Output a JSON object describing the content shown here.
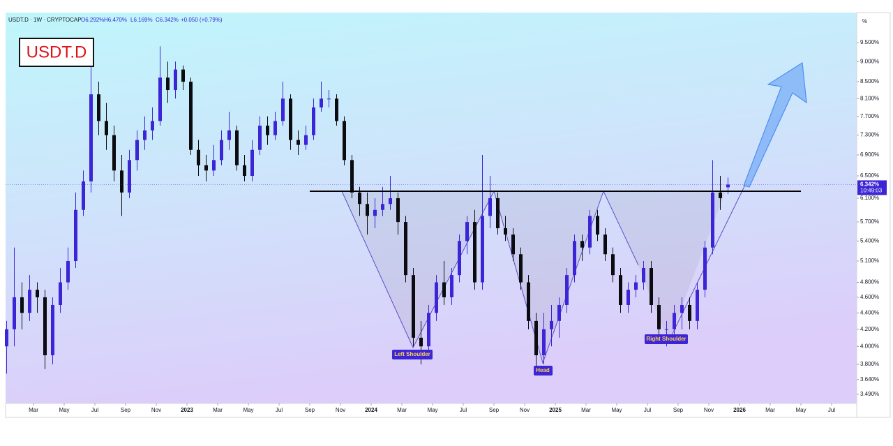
{
  "header": {
    "symbol_line": "USDT.D · 1W · CRYPTOCAP",
    "ohlc_texts": [
      "O6.292%",
      "H6.470%",
      "L6.169%",
      "C6.342%",
      "+0.050 (+0.79%)"
    ],
    "badge": "USDT.D",
    "axis_unit": "%",
    "price_label": "6.342%",
    "countdown": "10:49:03"
  },
  "annotations": [
    "Left Shoulder",
    "Head",
    "Right Shoulder"
  ],
  "chart_data": {
    "type": "candlestick",
    "log_scale": true,
    "up_color": "#3b25d6",
    "down_color": "#0b0b10",
    "ylim": [
      3.4,
      10.35
    ],
    "yticks": [
      {
        "value": 3.49,
        "label": "3.490%"
      },
      {
        "value": 3.64,
        "label": "3.640%"
      },
      {
        "value": 3.8,
        "label": "3.800%"
      },
      {
        "value": 4.0,
        "label": "4.000%"
      },
      {
        "value": 4.2,
        "label": "4.200%"
      },
      {
        "value": 4.4,
        "label": "4.400%"
      },
      {
        "value": 4.6,
        "label": "4.600%"
      },
      {
        "value": 4.8,
        "label": "4.800%"
      },
      {
        "value": 5.1,
        "label": "5.100%"
      },
      {
        "value": 5.4,
        "label": "5.400%"
      },
      {
        "value": 5.7,
        "label": "5.700%"
      },
      {
        "value": 6.1,
        "label": "6.100%"
      },
      {
        "value": 6.5,
        "label": "6.500%"
      },
      {
        "value": 6.9,
        "label": "6.900%"
      },
      {
        "value": 7.3,
        "label": "7.300%"
      },
      {
        "value": 7.7,
        "label": "7.700%"
      },
      {
        "value": 8.1,
        "label": "8.100%"
      },
      {
        "value": 8.5,
        "label": "8.500%"
      },
      {
        "value": 9.0,
        "label": "9.000%"
      },
      {
        "value": 9.5,
        "label": "9.500%"
      }
    ],
    "xlim": [
      "2022-01",
      "2026-08"
    ],
    "xticks": [
      {
        "value": "2022-03",
        "label": "Mar"
      },
      {
        "value": "2022-05",
        "label": "May"
      },
      {
        "value": "2022-07",
        "label": "Jul"
      },
      {
        "value": "2022-09",
        "label": "Sep"
      },
      {
        "value": "2022-11",
        "label": "Nov"
      },
      {
        "value": "2023-01",
        "label": "2023"
      },
      {
        "value": "2023-03",
        "label": "Mar"
      },
      {
        "value": "2023-05",
        "label": "May"
      },
      {
        "value": "2023-07",
        "label": "Jul"
      },
      {
        "value": "2023-09",
        "label": "Sep"
      },
      {
        "value": "2023-11",
        "label": "Nov"
      },
      {
        "value": "2024-01",
        "label": "2024"
      },
      {
        "value": "2024-03",
        "label": "Mar"
      },
      {
        "value": "2024-05",
        "label": "May"
      },
      {
        "value": "2024-07",
        "label": "Jul"
      },
      {
        "value": "2024-09",
        "label": "Sep"
      },
      {
        "value": "2024-11",
        "label": "Nov"
      },
      {
        "value": "2025-01",
        "label": "2025"
      },
      {
        "value": "2025-03",
        "label": "Mar"
      },
      {
        "value": "2025-05",
        "label": "May"
      },
      {
        "value": "2025-07",
        "label": "Jul"
      },
      {
        "value": "2025-09",
        "label": "Sep"
      },
      {
        "value": "2025-11",
        "label": "Nov"
      },
      {
        "value": "2026-01",
        "label": "2026"
      },
      {
        "value": "2026-03",
        "label": "Mar"
      },
      {
        "value": "2026-05",
        "label": "May"
      },
      {
        "value": "2026-07",
        "label": "Jul"
      }
    ],
    "months": [
      {
        "x": "2022-01",
        "candles": [
          [
            4.0,
            4.3,
            3.7,
            4.2
          ],
          [
            4.2,
            5.3,
            4.0,
            4.6
          ]
        ]
      },
      {
        "x": "2022-02",
        "candles": [
          [
            4.6,
            4.8,
            4.2,
            4.4
          ],
          [
            4.4,
            4.9,
            4.3,
            4.7
          ]
        ]
      },
      {
        "x": "2022-03",
        "candles": [
          [
            4.7,
            4.8,
            4.4,
            4.6
          ],
          [
            4.6,
            4.7,
            3.75,
            3.9
          ]
        ]
      },
      {
        "x": "2022-04",
        "candles": [
          [
            3.9,
            4.6,
            3.8,
            4.5
          ],
          [
            4.5,
            5.0,
            4.4,
            4.8
          ]
        ]
      },
      {
        "x": "2022-05",
        "candles": [
          [
            4.8,
            5.3,
            4.7,
            5.1
          ],
          [
            5.1,
            6.2,
            5.0,
            5.9
          ]
        ]
      },
      {
        "x": "2022-06",
        "candles": [
          [
            5.9,
            6.6,
            5.8,
            6.4
          ],
          [
            6.4,
            9.4,
            6.2,
            8.2
          ]
        ]
      },
      {
        "x": "2022-07",
        "candles": [
          [
            8.2,
            8.5,
            7.3,
            7.6
          ],
          [
            7.6,
            8.0,
            7.0,
            7.3
          ]
        ]
      },
      {
        "x": "2022-08",
        "candles": [
          [
            7.3,
            7.5,
            6.4,
            6.6
          ],
          [
            6.6,
            6.9,
            5.8,
            6.2
          ]
        ]
      },
      {
        "x": "2022-09",
        "candles": [
          [
            6.2,
            7.0,
            6.1,
            6.8
          ],
          [
            6.8,
            7.4,
            6.6,
            7.2
          ]
        ]
      },
      {
        "x": "2022-10",
        "candles": [
          [
            7.2,
            7.7,
            7.0,
            7.4
          ],
          [
            7.4,
            7.9,
            7.2,
            7.6
          ]
        ]
      },
      {
        "x": "2022-11",
        "candles": [
          [
            7.6,
            9.4,
            7.5,
            8.6
          ],
          [
            8.6,
            9.0,
            8.0,
            8.3
          ]
        ]
      },
      {
        "x": "2022-12",
        "candles": [
          [
            8.3,
            9.0,
            8.1,
            8.8
          ],
          [
            8.8,
            8.9,
            8.3,
            8.5
          ]
        ]
      },
      {
        "x": "2023-01",
        "candles": [
          [
            8.5,
            8.6,
            6.9,
            7.0
          ],
          [
            7.0,
            7.2,
            6.5,
            6.7
          ]
        ]
      },
      {
        "x": "2023-02",
        "candles": [
          [
            6.7,
            6.9,
            6.4,
            6.6
          ],
          [
            6.6,
            7.1,
            6.5,
            6.8
          ]
        ]
      },
      {
        "x": "2023-03",
        "candles": [
          [
            6.8,
            7.4,
            6.7,
            7.2
          ],
          [
            7.2,
            7.8,
            7.0,
            7.4
          ]
        ]
      },
      {
        "x": "2023-04",
        "candles": [
          [
            7.4,
            7.5,
            6.6,
            6.7
          ],
          [
            6.7,
            6.9,
            6.4,
            6.5
          ]
        ]
      },
      {
        "x": "2023-05",
        "candles": [
          [
            6.5,
            7.2,
            6.4,
            7.0
          ],
          [
            7.0,
            7.7,
            6.9,
            7.5
          ]
        ]
      },
      {
        "x": "2023-06",
        "candles": [
          [
            7.5,
            7.7,
            7.1,
            7.3
          ],
          [
            7.3,
            7.8,
            7.2,
            7.6
          ]
        ]
      },
      {
        "x": "2023-07",
        "candles": [
          [
            7.6,
            8.5,
            7.5,
            8.1
          ],
          [
            8.1,
            8.2,
            7.0,
            7.2
          ]
        ]
      },
      {
        "x": "2023-08",
        "candles": [
          [
            7.2,
            7.4,
            6.9,
            7.1
          ],
          [
            7.1,
            7.5,
            7.0,
            7.3
          ]
        ]
      },
      {
        "x": "2023-09",
        "candles": [
          [
            7.3,
            8.1,
            7.2,
            7.9
          ],
          [
            7.9,
            8.5,
            7.8,
            8.1
          ]
        ]
      },
      {
        "x": "2023-10",
        "candles": [
          [
            8.1,
            8.3,
            7.9,
            8.1
          ],
          [
            8.1,
            8.2,
            7.5,
            7.6
          ]
        ]
      },
      {
        "x": "2023-11",
        "candles": [
          [
            7.6,
            7.7,
            6.7,
            6.8
          ],
          [
            6.8,
            6.9,
            6.1,
            6.2
          ]
        ]
      },
      {
        "x": "2023-12",
        "candles": [
          [
            6.2,
            6.3,
            5.8,
            6.0
          ],
          [
            6.0,
            6.2,
            5.5,
            5.8
          ]
        ]
      },
      {
        "x": "2024-01",
        "candles": [
          [
            5.8,
            6.1,
            5.6,
            5.9
          ],
          [
            5.9,
            6.3,
            5.8,
            6.0
          ]
        ]
      },
      {
        "x": "2024-02",
        "candles": [
          [
            6.0,
            6.5,
            5.9,
            6.1
          ],
          [
            6.1,
            6.2,
            5.5,
            5.7
          ]
        ]
      },
      {
        "x": "2024-03",
        "candles": [
          [
            5.7,
            5.8,
            4.8,
            4.9
          ],
          [
            4.9,
            5.0,
            4.0,
            4.1
          ]
        ]
      },
      {
        "x": "2024-04",
        "candles": [
          [
            4.1,
            4.3,
            3.8,
            4.0
          ],
          [
            4.0,
            4.5,
            3.95,
            4.4
          ]
        ]
      },
      {
        "x": "2024-05",
        "candles": [
          [
            4.4,
            4.9,
            4.3,
            4.8
          ],
          [
            4.8,
            5.1,
            4.5,
            4.6
          ]
        ]
      },
      {
        "x": "2024-06",
        "candles": [
          [
            4.6,
            5.0,
            4.5,
            4.9
          ],
          [
            4.9,
            5.5,
            4.8,
            5.4
          ]
        ]
      },
      {
        "x": "2024-07",
        "candles": [
          [
            5.4,
            5.8,
            5.2,
            5.7
          ],
          [
            5.7,
            5.9,
            4.7,
            4.8
          ]
        ]
      },
      {
        "x": "2024-08",
        "candles": [
          [
            4.8,
            6.9,
            4.7,
            5.8
          ],
          [
            5.8,
            6.5,
            5.6,
            6.1
          ]
        ]
      },
      {
        "x": "2024-09",
        "candles": [
          [
            6.1,
            6.2,
            5.5,
            5.6
          ],
          [
            5.6,
            5.8,
            5.4,
            5.5
          ]
        ]
      },
      {
        "x": "2024-10",
        "candles": [
          [
            5.5,
            5.6,
            5.1,
            5.2
          ],
          [
            5.2,
            5.3,
            4.7,
            4.8
          ]
        ]
      },
      {
        "x": "2024-11",
        "candles": [
          [
            4.8,
            4.9,
            4.2,
            4.3
          ],
          [
            4.3,
            4.4,
            3.75,
            3.9
          ]
        ]
      },
      {
        "x": "2024-12",
        "candles": [
          [
            3.9,
            4.4,
            3.8,
            4.2
          ],
          [
            4.2,
            4.5,
            4.0,
            4.3
          ]
        ]
      },
      {
        "x": "2025-01",
        "candles": [
          [
            4.3,
            4.6,
            4.1,
            4.5
          ],
          [
            4.5,
            5.0,
            4.4,
            4.9
          ]
        ]
      },
      {
        "x": "2025-02",
        "candles": [
          [
            4.9,
            5.5,
            4.8,
            5.4
          ],
          [
            5.4,
            5.5,
            5.1,
            5.3
          ]
        ]
      },
      {
        "x": "2025-03",
        "candles": [
          [
            5.3,
            5.9,
            5.2,
            5.8
          ],
          [
            5.8,
            5.9,
            5.4,
            5.5
          ]
        ]
      },
      {
        "x": "2025-04",
        "candles": [
          [
            5.5,
            5.6,
            5.1,
            5.2
          ],
          [
            5.2,
            5.3,
            4.8,
            4.9
          ]
        ]
      },
      {
        "x": "2025-05",
        "candles": [
          [
            4.9,
            5.0,
            4.4,
            4.5
          ],
          [
            4.5,
            4.8,
            4.4,
            4.7
          ]
        ]
      },
      {
        "x": "2025-06",
        "candles": [
          [
            4.7,
            4.9,
            4.6,
            4.8
          ],
          [
            4.8,
            5.1,
            4.7,
            5.0
          ]
        ]
      },
      {
        "x": "2025-07",
        "candles": [
          [
            5.0,
            5.1,
            4.4,
            4.5
          ],
          [
            4.5,
            4.6,
            4.1,
            4.2
          ]
        ]
      },
      {
        "x": "2025-08",
        "candles": [
          [
            4.2,
            4.3,
            4.0,
            4.2
          ],
          [
            4.2,
            4.5,
            4.1,
            4.4
          ]
        ]
      },
      {
        "x": "2025-09",
        "candles": [
          [
            4.4,
            4.6,
            4.2,
            4.5
          ],
          [
            4.5,
            4.6,
            4.2,
            4.3
          ]
        ]
      },
      {
        "x": "2025-10",
        "candles": [
          [
            4.3,
            4.8,
            4.2,
            4.7
          ],
          [
            4.7,
            5.4,
            4.6,
            5.3
          ]
        ]
      },
      {
        "x": "2025-11",
        "candles": [
          [
            5.3,
            6.8,
            5.2,
            6.2
          ],
          [
            6.2,
            6.5,
            5.9,
            6.1
          ]
        ]
      },
      {
        "x": "2025-12",
        "candles": [
          [
            6.292,
            6.47,
            6.169,
            6.342
          ]
        ]
      }
    ]
  }
}
